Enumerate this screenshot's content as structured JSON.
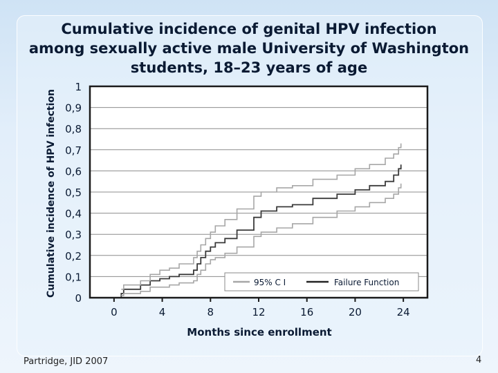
{
  "slide": {
    "title_lines": [
      "Cumulative incidence of genital HPV infection",
      "among sexually active male University of Washington",
      "students, 18–23 years of age"
    ],
    "source": "Partridge, JID 2007",
    "page_number": "4"
  },
  "chart_data": {
    "type": "line",
    "xlabel": "Months since enrollment",
    "ylabel": "Cumulative incidence of HPV infection",
    "xlim": [
      -2,
      26
    ],
    "ylim": [
      0,
      1
    ],
    "x_ticks": [
      "0",
      "4",
      "8",
      "12",
      "16",
      "20",
      "24"
    ],
    "x_tick_values": [
      0,
      4,
      8,
      12,
      16,
      20,
      24
    ],
    "y_ticks": [
      "0",
      "0,1",
      "0,2",
      "0,3",
      "0,4",
      "0,5",
      "0,6",
      "0,7",
      "0,8",
      "0,9",
      "1"
    ],
    "y_tick_values": [
      0,
      0.1,
      0.2,
      0.3,
      0.4,
      0.5,
      0.6,
      0.7,
      0.8,
      0.9,
      1.0
    ],
    "grid": true,
    "legend_position": "bottom-right",
    "series": [
      {
        "name": "Failure Function",
        "color": "#3a3a3a",
        "points": [
          [
            -1.5,
            0
          ],
          [
            0.6,
            0
          ],
          [
            0.6,
            0.02
          ],
          [
            0.8,
            0.04
          ],
          [
            1.1,
            0.04
          ],
          [
            2.2,
            0.06
          ],
          [
            3,
            0.08
          ],
          [
            3.8,
            0.09
          ],
          [
            4.6,
            0.1
          ],
          [
            5.4,
            0.11
          ],
          [
            6.6,
            0.13
          ],
          [
            6.9,
            0.16
          ],
          [
            7.2,
            0.19
          ],
          [
            7.6,
            0.22
          ],
          [
            8,
            0.24
          ],
          [
            8.4,
            0.26
          ],
          [
            9.2,
            0.28
          ],
          [
            10.2,
            0.32
          ],
          [
            11.6,
            0.38
          ],
          [
            12.2,
            0.41
          ],
          [
            13.5,
            0.43
          ],
          [
            14.8,
            0.44
          ],
          [
            16.5,
            0.47
          ],
          [
            18.5,
            0.49
          ],
          [
            20,
            0.51
          ],
          [
            21.2,
            0.53
          ],
          [
            22.5,
            0.55
          ],
          [
            23.2,
            0.58
          ],
          [
            23.6,
            0.61
          ],
          [
            23.8,
            0.63
          ]
        ]
      },
      {
        "name": "95% C I",
        "color": "#a6a6a6",
        "points": [
          [
            0.6,
            0.04
          ],
          [
            0.8,
            0.06
          ],
          [
            2.2,
            0.08
          ],
          [
            3,
            0.11
          ],
          [
            3.8,
            0.13
          ],
          [
            4.6,
            0.14
          ],
          [
            5.4,
            0.16
          ],
          [
            6.6,
            0.19
          ],
          [
            6.9,
            0.22
          ],
          [
            7.2,
            0.25
          ],
          [
            7.6,
            0.28
          ],
          [
            8,
            0.31
          ],
          [
            8.4,
            0.34
          ],
          [
            9.2,
            0.37
          ],
          [
            10.2,
            0.42
          ],
          [
            11.6,
            0.48
          ],
          [
            12.2,
            0.5
          ],
          [
            13.5,
            0.52
          ],
          [
            14.8,
            0.53
          ],
          [
            16.5,
            0.56
          ],
          [
            18.5,
            0.58
          ],
          [
            20,
            0.61
          ],
          [
            21.2,
            0.63
          ],
          [
            22.5,
            0.66
          ],
          [
            23.2,
            0.68
          ],
          [
            23.6,
            0.71
          ],
          [
            23.8,
            0.73
          ]
        ]
      },
      {
        "name": "95% C I lower",
        "color": "#a6a6a6",
        "points": [
          [
            0.6,
            0.01
          ],
          [
            0.8,
            0.02
          ],
          [
            2.2,
            0.03
          ],
          [
            3,
            0.05
          ],
          [
            3.8,
            0.05
          ],
          [
            4.6,
            0.06
          ],
          [
            5.4,
            0.07
          ],
          [
            6.6,
            0.08
          ],
          [
            6.9,
            0.11
          ],
          [
            7.2,
            0.13
          ],
          [
            7.6,
            0.16
          ],
          [
            8,
            0.18
          ],
          [
            8.4,
            0.19
          ],
          [
            9.2,
            0.21
          ],
          [
            10.2,
            0.24
          ],
          [
            11.6,
            0.29
          ],
          [
            12.2,
            0.31
          ],
          [
            13.5,
            0.33
          ],
          [
            14.8,
            0.35
          ],
          [
            16.5,
            0.38
          ],
          [
            18.5,
            0.41
          ],
          [
            20,
            0.43
          ],
          [
            21.2,
            0.45
          ],
          [
            22.5,
            0.47
          ],
          [
            23.2,
            0.49
          ],
          [
            23.6,
            0.52
          ],
          [
            23.8,
            0.54
          ]
        ]
      }
    ],
    "legend": [
      {
        "label": "95% C I",
        "color": "#a6a6a6"
      },
      {
        "label": "Failure Function",
        "color": "#222222"
      }
    ]
  }
}
